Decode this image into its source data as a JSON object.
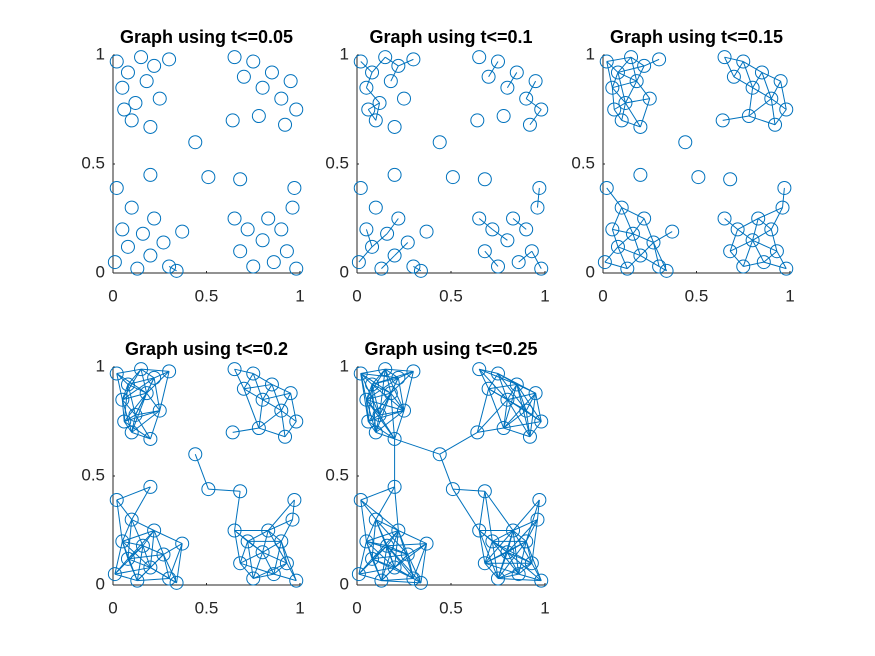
{
  "chart_data": [
    {
      "type": "graph",
      "title": "Graph using t<=0.05",
      "threshold": 0.05,
      "color": "#0072bd",
      "x": [
        0.02,
        0.05,
        0.08,
        0.12,
        0.15,
        0.18,
        0.22,
        0.25,
        0.1,
        0.3,
        0.2,
        0.06,
        0.65,
        0.7,
        0.75,
        0.8,
        0.85,
        0.9,
        0.95,
        0.98,
        0.78,
        0.92,
        0.01,
        0.05,
        0.08,
        0.1,
        0.13,
        0.16,
        0.2,
        0.22,
        0.27,
        0.3,
        0.34,
        0.02,
        0.65,
        0.68,
        0.72,
        0.75,
        0.8,
        0.83,
        0.86,
        0.9,
        0.93,
        0.96,
        0.98,
        0.97,
        0.44,
        0.51,
        0.68,
        0.2,
        0.37,
        0.64
      ],
      "y": [
        0.97,
        0.85,
        0.92,
        0.78,
        0.99,
        0.88,
        0.95,
        0.8,
        0.7,
        0.98,
        0.67,
        0.75,
        0.99,
        0.9,
        0.97,
        0.85,
        0.92,
        0.8,
        0.88,
        0.75,
        0.72,
        0.68,
        0.05,
        0.2,
        0.12,
        0.3,
        0.02,
        0.18,
        0.08,
        0.25,
        0.14,
        0.03,
        0.01,
        0.39,
        0.25,
        0.1,
        0.2,
        0.03,
        0.15,
        0.25,
        0.05,
        0.2,
        0.1,
        0.3,
        0.02,
        0.39,
        0.6,
        0.44,
        0.43,
        0.45,
        0.19,
        0.7
      ],
      "xlim": [
        0,
        1
      ],
      "ylim": [
        0,
        1
      ],
      "xticks": [
        0,
        0.5,
        1
      ],
      "yticks": [
        0,
        0.5,
        1
      ]
    },
    {
      "type": "graph",
      "title": "Graph using t<=0.1",
      "threshold": 0.1,
      "color": "#0072bd",
      "x": [
        0.02,
        0.05,
        0.08,
        0.12,
        0.15,
        0.18,
        0.22,
        0.25,
        0.1,
        0.3,
        0.2,
        0.06,
        0.65,
        0.7,
        0.75,
        0.8,
        0.85,
        0.9,
        0.95,
        0.98,
        0.78,
        0.92,
        0.01,
        0.05,
        0.08,
        0.1,
        0.13,
        0.16,
        0.2,
        0.22,
        0.27,
        0.3,
        0.34,
        0.02,
        0.65,
        0.68,
        0.72,
        0.75,
        0.8,
        0.83,
        0.86,
        0.9,
        0.93,
        0.96,
        0.98,
        0.97,
        0.44,
        0.51,
        0.68,
        0.2,
        0.37,
        0.64
      ],
      "y": [
        0.97,
        0.85,
        0.92,
        0.78,
        0.99,
        0.88,
        0.95,
        0.8,
        0.7,
        0.98,
        0.67,
        0.75,
        0.99,
        0.9,
        0.97,
        0.85,
        0.92,
        0.8,
        0.88,
        0.75,
        0.72,
        0.68,
        0.05,
        0.2,
        0.12,
        0.3,
        0.02,
        0.18,
        0.08,
        0.25,
        0.14,
        0.03,
        0.01,
        0.39,
        0.25,
        0.1,
        0.2,
        0.03,
        0.15,
        0.25,
        0.05,
        0.2,
        0.1,
        0.3,
        0.02,
        0.39,
        0.6,
        0.44,
        0.43,
        0.45,
        0.19,
        0.7
      ],
      "xlim": [
        0,
        1
      ],
      "ylim": [
        0,
        1
      ],
      "xticks": [
        0,
        0.5,
        1
      ],
      "yticks": [
        0,
        0.5,
        1
      ]
    },
    {
      "type": "graph",
      "title": "Graph using t<=0.15",
      "threshold": 0.15,
      "color": "#0072bd",
      "x": [
        0.02,
        0.05,
        0.08,
        0.12,
        0.15,
        0.18,
        0.22,
        0.25,
        0.1,
        0.3,
        0.2,
        0.06,
        0.65,
        0.7,
        0.75,
        0.8,
        0.85,
        0.9,
        0.95,
        0.98,
        0.78,
        0.92,
        0.01,
        0.05,
        0.08,
        0.1,
        0.13,
        0.16,
        0.2,
        0.22,
        0.27,
        0.3,
        0.34,
        0.02,
        0.65,
        0.68,
        0.72,
        0.75,
        0.8,
        0.83,
        0.86,
        0.9,
        0.93,
        0.96,
        0.98,
        0.97,
        0.44,
        0.51,
        0.68,
        0.2,
        0.37,
        0.64
      ],
      "y": [
        0.97,
        0.85,
        0.92,
        0.78,
        0.99,
        0.88,
        0.95,
        0.8,
        0.7,
        0.98,
        0.67,
        0.75,
        0.99,
        0.9,
        0.97,
        0.85,
        0.92,
        0.8,
        0.88,
        0.75,
        0.72,
        0.68,
        0.05,
        0.2,
        0.12,
        0.3,
        0.02,
        0.18,
        0.08,
        0.25,
        0.14,
        0.03,
        0.01,
        0.39,
        0.25,
        0.1,
        0.2,
        0.03,
        0.15,
        0.25,
        0.05,
        0.2,
        0.1,
        0.3,
        0.02,
        0.39,
        0.6,
        0.44,
        0.43,
        0.45,
        0.19,
        0.7
      ],
      "xlim": [
        0,
        1
      ],
      "ylim": [
        0,
        1
      ],
      "xticks": [
        0,
        0.5,
        1
      ],
      "yticks": [
        0,
        0.5,
        1
      ]
    },
    {
      "type": "graph",
      "title": "Graph using t<=0.2",
      "threshold": 0.2,
      "color": "#0072bd",
      "x": [
        0.02,
        0.05,
        0.08,
        0.12,
        0.15,
        0.18,
        0.22,
        0.25,
        0.1,
        0.3,
        0.2,
        0.06,
        0.65,
        0.7,
        0.75,
        0.8,
        0.85,
        0.9,
        0.95,
        0.98,
        0.78,
        0.92,
        0.01,
        0.05,
        0.08,
        0.1,
        0.13,
        0.16,
        0.2,
        0.22,
        0.27,
        0.3,
        0.34,
        0.02,
        0.65,
        0.68,
        0.72,
        0.75,
        0.8,
        0.83,
        0.86,
        0.9,
        0.93,
        0.96,
        0.98,
        0.97,
        0.44,
        0.51,
        0.68,
        0.2,
        0.37,
        0.64
      ],
      "y": [
        0.97,
        0.85,
        0.92,
        0.78,
        0.99,
        0.88,
        0.95,
        0.8,
        0.7,
        0.98,
        0.67,
        0.75,
        0.99,
        0.9,
        0.97,
        0.85,
        0.92,
        0.8,
        0.88,
        0.75,
        0.72,
        0.68,
        0.05,
        0.2,
        0.12,
        0.3,
        0.02,
        0.18,
        0.08,
        0.25,
        0.14,
        0.03,
        0.01,
        0.39,
        0.25,
        0.1,
        0.2,
        0.03,
        0.15,
        0.25,
        0.05,
        0.2,
        0.1,
        0.3,
        0.02,
        0.39,
        0.6,
        0.44,
        0.43,
        0.45,
        0.19,
        0.7
      ],
      "xlim": [
        0,
        1
      ],
      "ylim": [
        0,
        1
      ],
      "xticks": [
        0,
        0.5,
        1
      ],
      "yticks": [
        0,
        0.5,
        1
      ]
    },
    {
      "type": "graph",
      "title": "Graph using t<=0.25",
      "threshold": 0.25,
      "color": "#0072bd",
      "x": [
        0.02,
        0.05,
        0.08,
        0.12,
        0.15,
        0.18,
        0.22,
        0.25,
        0.1,
        0.3,
        0.2,
        0.06,
        0.65,
        0.7,
        0.75,
        0.8,
        0.85,
        0.9,
        0.95,
        0.98,
        0.78,
        0.92,
        0.01,
        0.05,
        0.08,
        0.1,
        0.13,
        0.16,
        0.2,
        0.22,
        0.27,
        0.3,
        0.34,
        0.02,
        0.65,
        0.68,
        0.72,
        0.75,
        0.8,
        0.83,
        0.86,
        0.9,
        0.93,
        0.96,
        0.98,
        0.97,
        0.44,
        0.51,
        0.68,
        0.2,
        0.37,
        0.64
      ],
      "y": [
        0.97,
        0.85,
        0.92,
        0.78,
        0.99,
        0.88,
        0.95,
        0.8,
        0.7,
        0.98,
        0.67,
        0.75,
        0.99,
        0.9,
        0.97,
        0.85,
        0.92,
        0.8,
        0.88,
        0.75,
        0.72,
        0.68,
        0.05,
        0.2,
        0.12,
        0.3,
        0.02,
        0.18,
        0.08,
        0.25,
        0.14,
        0.03,
        0.01,
        0.39,
        0.25,
        0.1,
        0.2,
        0.03,
        0.15,
        0.25,
        0.05,
        0.2,
        0.1,
        0.3,
        0.02,
        0.39,
        0.6,
        0.44,
        0.43,
        0.45,
        0.19,
        0.7
      ],
      "xlim": [
        0,
        1
      ],
      "ylim": [
        0,
        1
      ],
      "xticks": [
        0,
        0.5,
        1
      ],
      "yticks": [
        0,
        0.5,
        1
      ]
    }
  ]
}
